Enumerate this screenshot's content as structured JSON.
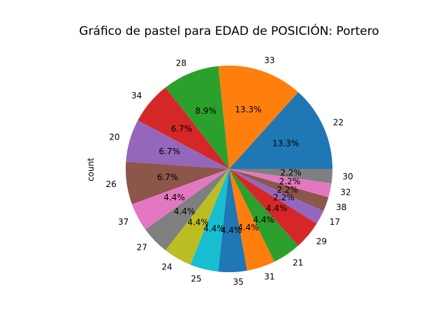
{
  "chart_data": {
    "type": "pie",
    "title": "Gráfico de pastel para EDAD de POSICIÓN: Portero",
    "ylabel": "count",
    "start_angle_deg": 0,
    "direction": "counterclockwise",
    "slices": [
      {
        "label": "22",
        "value": 6,
        "pct_label": "13.3%",
        "color": "#1f77b4"
      },
      {
        "label": "33",
        "value": 6,
        "pct_label": "13.3%",
        "color": "#ff7f0e"
      },
      {
        "label": "28",
        "value": 4,
        "pct_label": "8.9%",
        "color": "#2ca02c"
      },
      {
        "label": "34",
        "value": 3,
        "pct_label": "6.7%",
        "color": "#d62728"
      },
      {
        "label": "20",
        "value": 3,
        "pct_label": "6.7%",
        "color": "#9467bd"
      },
      {
        "label": "26",
        "value": 3,
        "pct_label": "6.7%",
        "color": "#8c564b"
      },
      {
        "label": "37",
        "value": 2,
        "pct_label": "4.4%",
        "color": "#e377c2"
      },
      {
        "label": "27",
        "value": 2,
        "pct_label": "4.4%",
        "color": "#7f7f7f"
      },
      {
        "label": "24",
        "value": 2,
        "pct_label": "4.4%",
        "color": "#bcbd22"
      },
      {
        "label": "25",
        "value": 2,
        "pct_label": "4.4%",
        "color": "#17becf"
      },
      {
        "label": "35",
        "value": 2,
        "pct_label": "4.4%",
        "color": "#1f77b4"
      },
      {
        "label": "31",
        "value": 2,
        "pct_label": "4.4%",
        "color": "#ff7f0e"
      },
      {
        "label": "21",
        "value": 2,
        "pct_label": "4.4%",
        "color": "#2ca02c"
      },
      {
        "label": "29",
        "value": 2,
        "pct_label": "4.4%",
        "color": "#d62728"
      },
      {
        "label": "17",
        "value": 1,
        "pct_label": "2.2%",
        "color": "#9467bd"
      },
      {
        "label": "38",
        "value": 1,
        "pct_label": "2.2%",
        "color": "#8c564b"
      },
      {
        "label": "32",
        "value": 1,
        "pct_label": "2.2%",
        "color": "#e377c2"
      },
      {
        "label": "30",
        "value": 1,
        "pct_label": "2.2%",
        "color": "#7f7f7f"
      }
    ]
  }
}
